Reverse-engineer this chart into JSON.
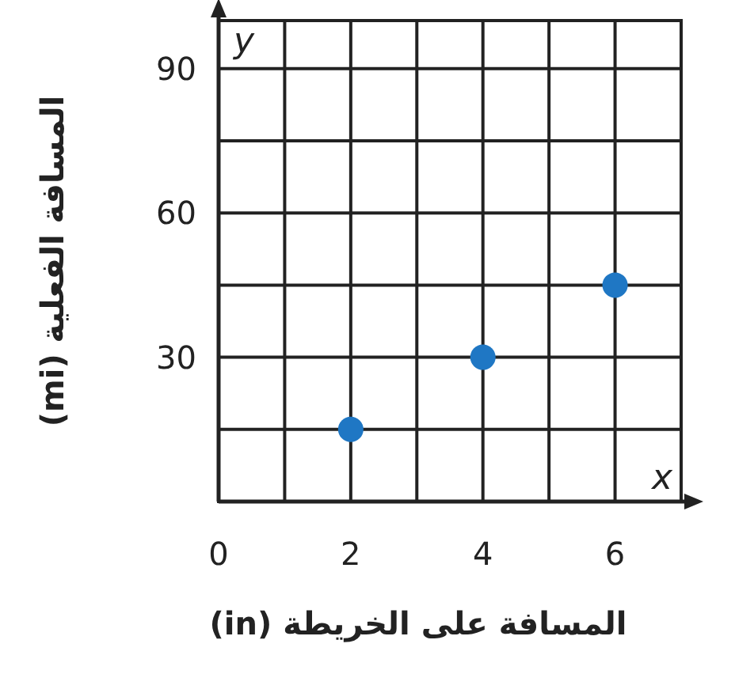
{
  "chart_data": {
    "type": "scatter",
    "xlabel": "المسافة على الخريطة (in)",
    "ylabel": "المسافة الفعلية (mi)",
    "x": [
      2,
      4,
      6
    ],
    "series": [
      {
        "color": "#1f77c4",
        "values": [
          15,
          30,
          45
        ]
      }
    ],
    "xlim": [
      0,
      7
    ],
    "ylim": [
      0,
      100
    ],
    "xticks": [
      0,
      {
        "value": 1,
        "label": null
      },
      2,
      {
        "value": 3,
        "label": null
      },
      4,
      {
        "value": 5,
        "label": null
      },
      6,
      {
        "value": 7,
        "label": null
      }
    ],
    "yticks": [
      {
        "value": 0,
        "label": null
      },
      {
        "value": 15,
        "label": null
      },
      30,
      {
        "value": 45,
        "label": null
      },
      60,
      {
        "value": 75,
        "label": null
      },
      90
    ],
    "annotations": [
      "x",
      "y"
    ],
    "grid": true,
    "marker": "circle"
  }
}
